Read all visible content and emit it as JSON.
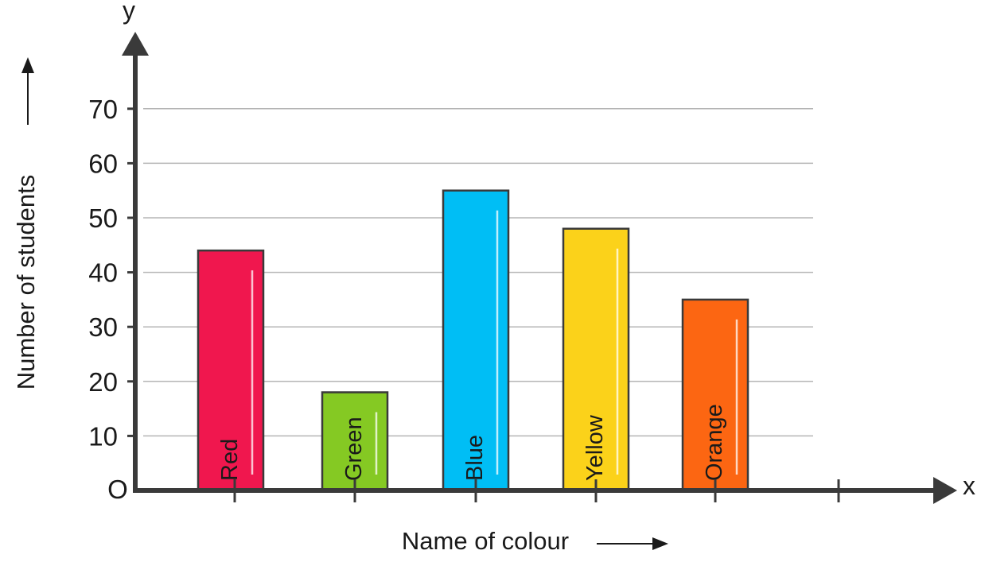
{
  "chart_data": {
    "type": "bar",
    "categories": [
      "Red",
      "Green",
      "Blue",
      "Yellow",
      "Orange"
    ],
    "values": [
      44,
      18,
      55,
      48,
      35
    ],
    "colors": [
      "#f0174e",
      "#85c923",
      "#00bef5",
      "#fbd21a",
      "#fc6612"
    ],
    "xlabel": "Name of colour",
    "ylabel": "Number of students",
    "x_axis_letter": "x",
    "y_axis_letter": "y",
    "origin_label": "O",
    "ylim": [
      0,
      70
    ],
    "yticks": [
      "10",
      "20",
      "30",
      "40",
      "50",
      "60",
      "70"
    ],
    "grid": true,
    "axis_color": "#3a3a3a",
    "grid_color": "#b5b5b5"
  }
}
